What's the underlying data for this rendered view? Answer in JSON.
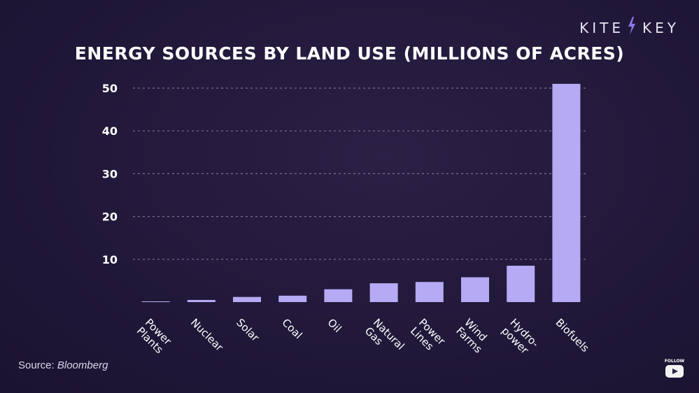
{
  "brand": {
    "left": "KITE",
    "right": "KEY",
    "accent": "#8f76e6"
  },
  "source": {
    "prefix": "Source: ",
    "name": "Bloomberg"
  },
  "follow": {
    "label": "FOLLOW",
    "icon": "youtube-icon"
  },
  "colors": {
    "bar": "#b7aaf4",
    "axis": "#cfc4ff",
    "grid": "#8e86a8",
    "text": "#ffffff"
  },
  "chart_data": {
    "type": "bar",
    "title": "ENERGY SOURCES BY LAND USE (MILLIONS OF ACRES)",
    "xlabel": "",
    "ylabel": "",
    "ylim": [
      0,
      50
    ],
    "yticks": [
      10,
      20,
      30,
      40,
      50
    ],
    "grid": true,
    "categories": [
      [
        "Power",
        "Plants"
      ],
      [
        "Nuclear"
      ],
      [
        "Solar"
      ],
      [
        "Coal"
      ],
      [
        "Oil"
      ],
      [
        "Natural",
        "Gas"
      ],
      [
        "Power",
        "Lines"
      ],
      [
        "Wind",
        "Farms"
      ],
      [
        "Hydro-",
        "power"
      ],
      [
        "Biofuels"
      ]
    ],
    "values": [
      0.1,
      0.5,
      1.2,
      1.5,
      3.0,
      4.4,
      4.7,
      5.8,
      8.5,
      51.0
    ]
  }
}
